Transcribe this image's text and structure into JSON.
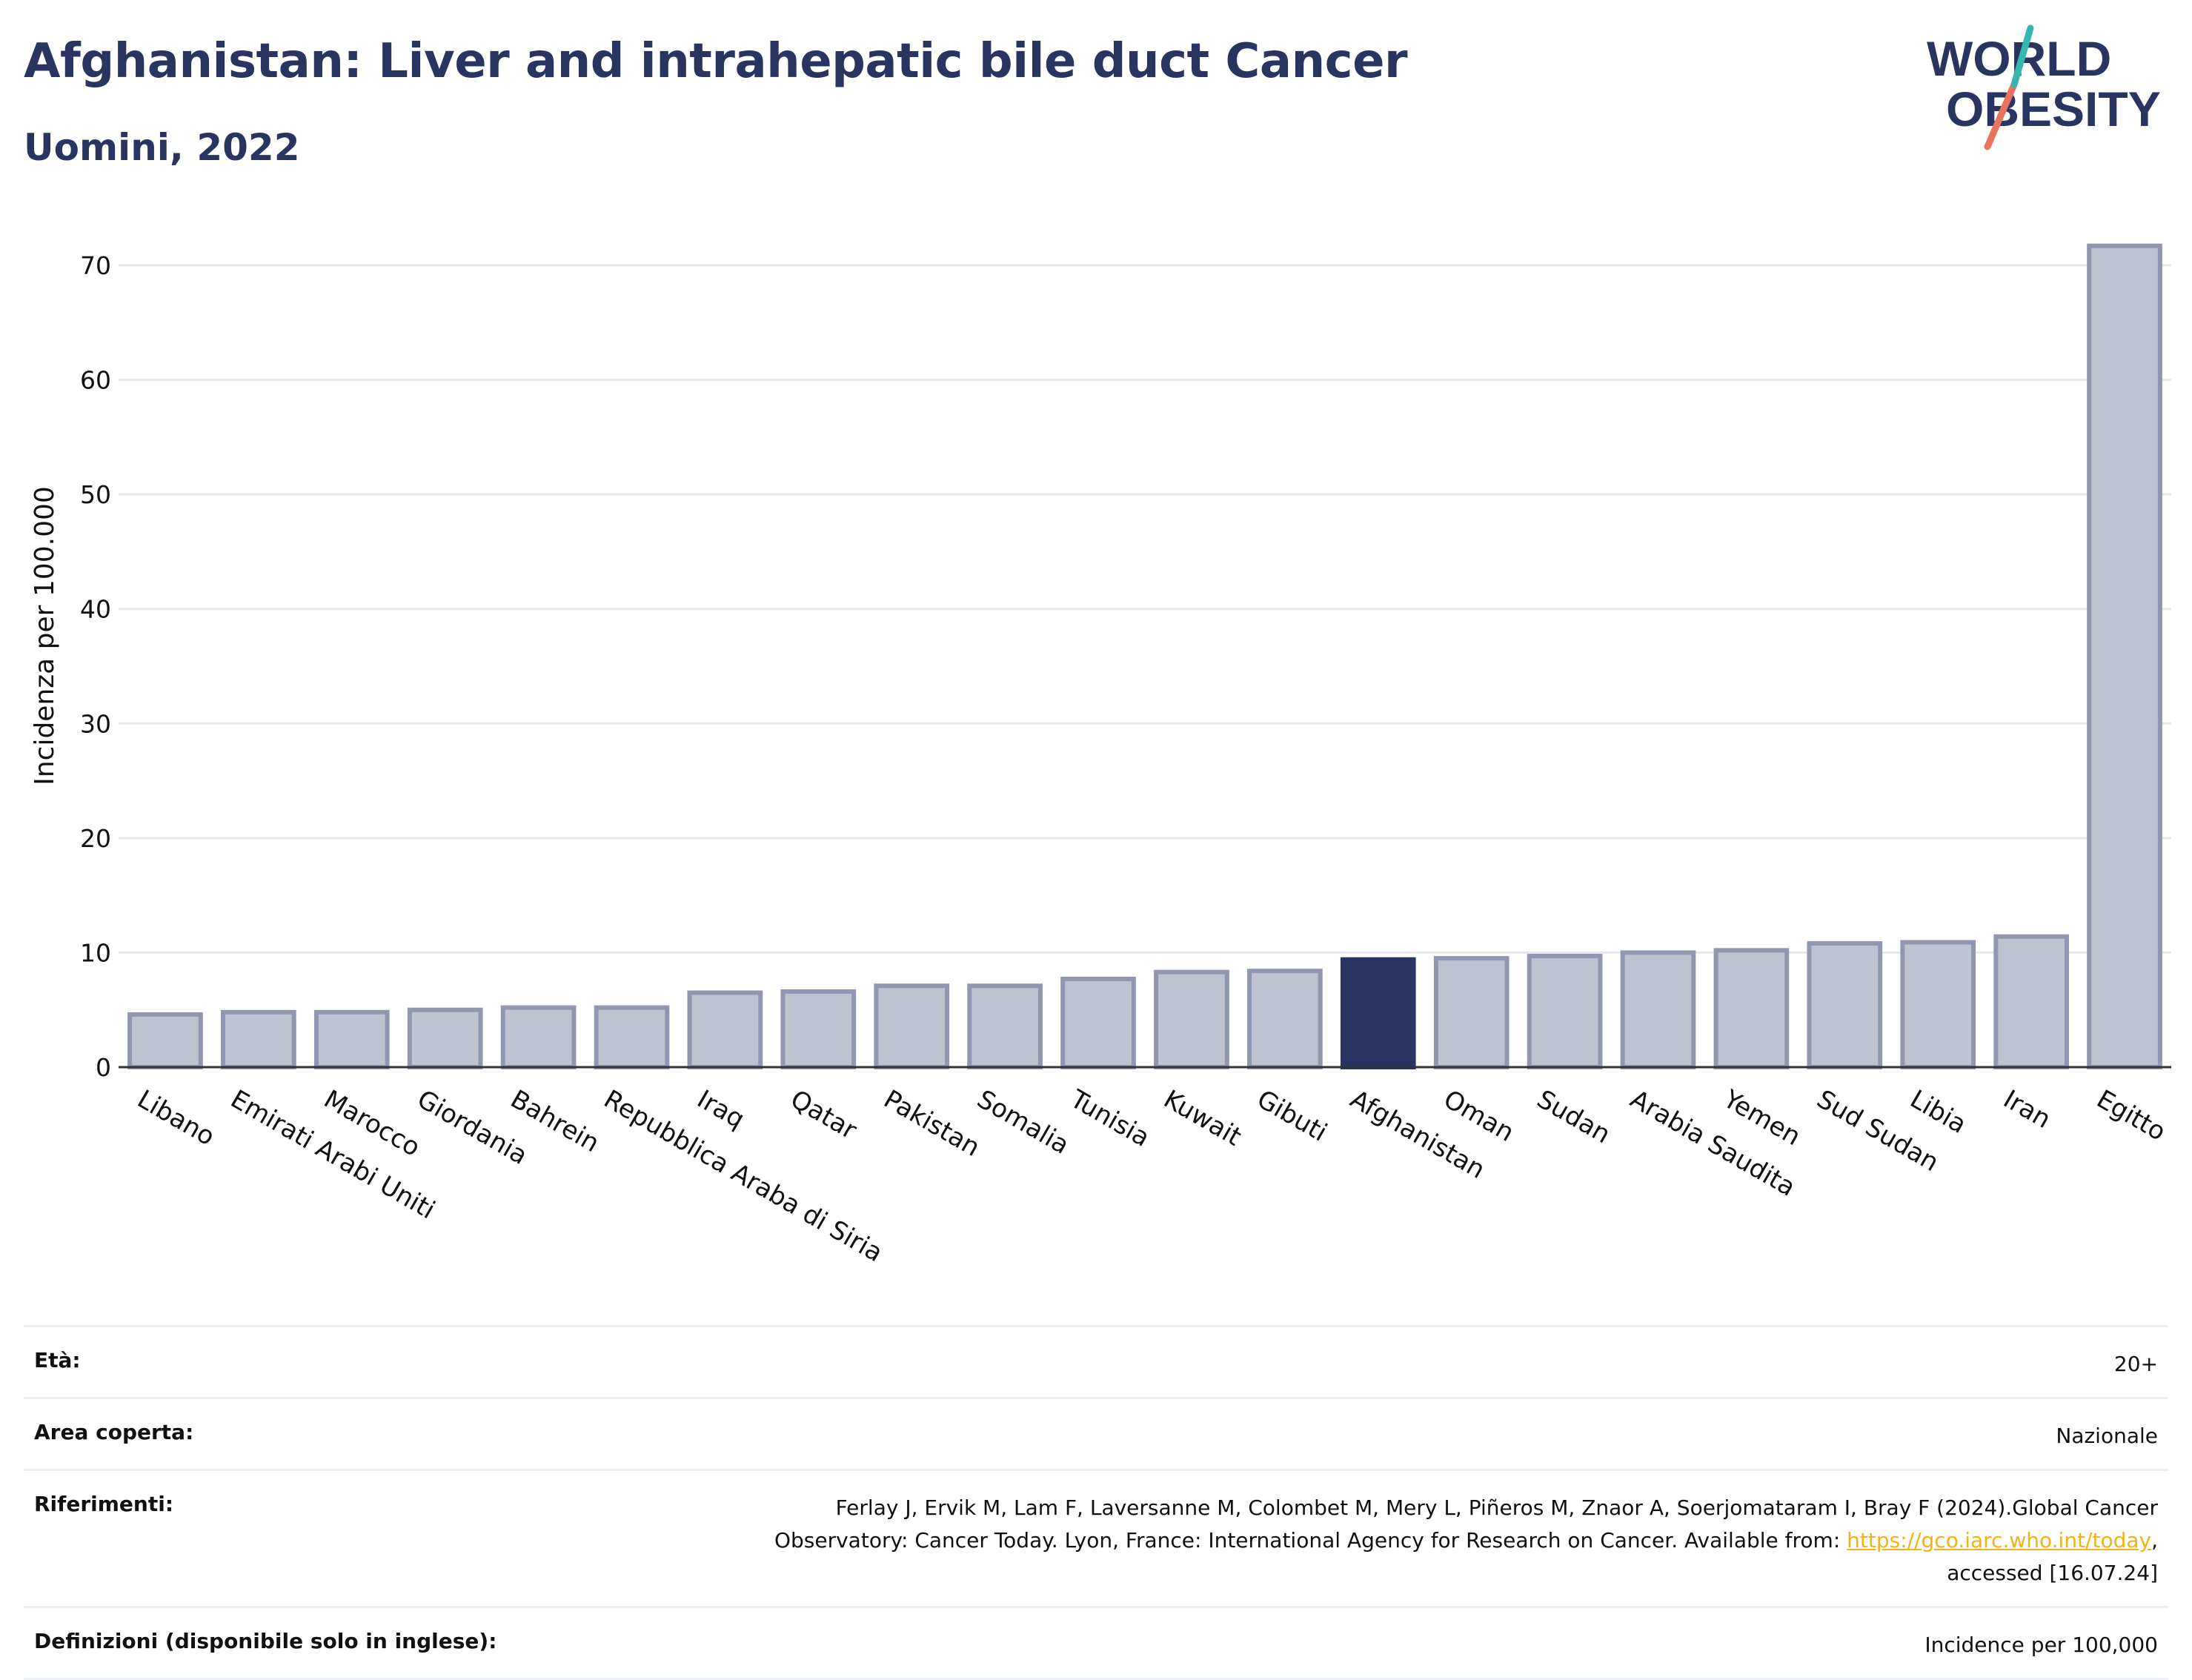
{
  "header": {
    "title": "Afghanistan: Liver and intrahepatic bile duct Cancer",
    "subtitle": "Uomini, 2022"
  },
  "logo": {
    "line1": "WORLD",
    "line2": "OBESITY",
    "colors": [
      "#2a3461",
      "#e8735f",
      "#34b7b1"
    ]
  },
  "colors": {
    "bar": "#bfc2d0",
    "bar_stroke": "#9197b0",
    "highlight": "#2a3461",
    "grid": "#e6e8ee"
  },
  "chart_data": {
    "type": "bar",
    "title": "Afghanistan: Liver and intrahepatic bile duct Cancer",
    "subtitle": "Uomini, 2022",
    "ylabel": "Incidenza per 100.000",
    "xlabel": "",
    "ylim": [
      0,
      72
    ],
    "yticks": [
      0,
      10,
      20,
      30,
      40,
      50,
      60,
      70
    ],
    "grid": true,
    "highlight": "Afghanistan",
    "categories": [
      "Libano",
      "Emirati Arabi Uniti",
      "Marocco",
      "Giordania",
      "Bahrein",
      "Repubblica Araba di Siria",
      "Iraq",
      "Qatar",
      "Pakistan",
      "Somalia",
      "Tunisia",
      "Kuwait",
      "Gibuti",
      "Afghanistan",
      "Oman",
      "Sudan",
      "Arabia Saudita",
      "Yemen",
      "Sud Sudan",
      "Libia",
      "Iran",
      "Egitto"
    ],
    "values": [
      4.6,
      4.8,
      4.8,
      5.0,
      5.2,
      5.2,
      6.5,
      6.6,
      7.1,
      7.1,
      7.7,
      8.3,
      8.4,
      9.4,
      9.5,
      9.7,
      10.0,
      10.2,
      10.8,
      10.9,
      11.4,
      71.7
    ]
  },
  "info": [
    {
      "label": "Età:",
      "value": "20+"
    },
    {
      "label": "Area coperta:",
      "value": "Nazionale"
    },
    {
      "label": "Riferimenti:",
      "value_lines": [
        "Ferlay J, Ervik M, Lam F, Laversanne M, Colombet M, Mery L, Piñeros M, Znaor A, Soerjomataram I, Bray F (2024).Global Cancer",
        "Observatory: Cancer Today. Lyon, France: International Agency for Research on Cancer. Available from: "
      ],
      "link": "https://gco.iarc.who.int/today",
      "value_tail": ",",
      "value_last": "accessed [16.07.24]"
    },
    {
      "label": "Definizioni (disponibile solo in inglese):",
      "value": "Incidence per 100,000"
    }
  ]
}
